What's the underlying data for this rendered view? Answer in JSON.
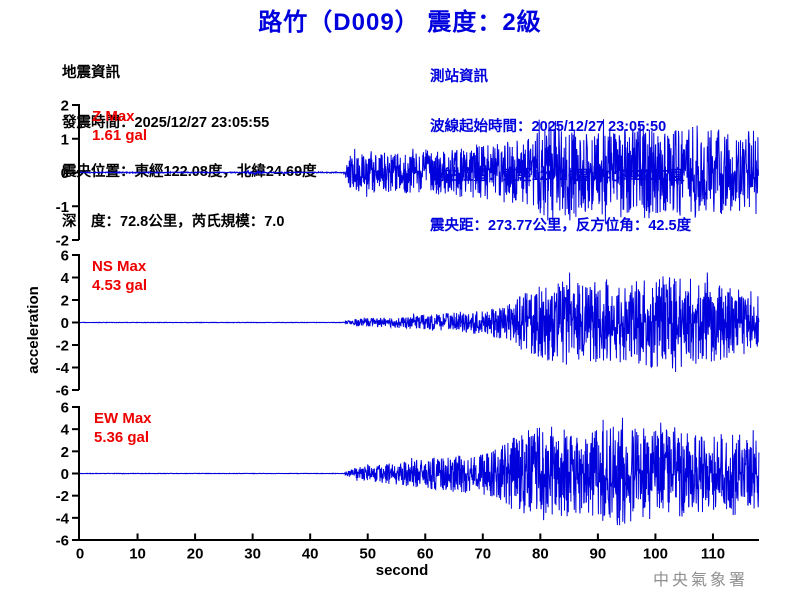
{
  "title": "路竹（D009） 震度：2級",
  "eq_info": {
    "lines": [
      "地震資訊",
      "發震時間：2025/12/27 23:05:55",
      "震央位置：東經122.08度，北緯24.69度",
      "深　度：72.8公里，芮氏規模：7.0"
    ]
  },
  "station_info": {
    "lines": [
      "測站資訊",
      "波線起始時間：2025/12/27 23:05:50",
      "測站位置：東經120.26度，北緯22.87度",
      "震央距：273.77公里，反方位角：42.5度"
    ]
  },
  "agency": "中央氣象署",
  "colors": {
    "trace_blue": "#0000dd",
    "accent_blue": "#0000dd",
    "label_red": "#ee0000",
    "axis_black": "#000000",
    "agency_gray": "#8f8f8f"
  },
  "chart_data": {
    "type": "line",
    "xlabel": "second",
    "ylabel": "acceleration",
    "x_range": [
      0,
      118
    ],
    "xticks": [
      0,
      10,
      20,
      30,
      40,
      50,
      60,
      70,
      80,
      90,
      100,
      110
    ],
    "grid": false,
    "series": [
      {
        "name": "Z",
        "max_label": "Z Max",
        "max_value": "1.61 gal",
        "max_gal": 1.61,
        "ylim": [
          -2,
          2
        ],
        "yticks": [
          2,
          1,
          0,
          -1,
          -2
        ],
        "onset_s": 46,
        "envelope": [
          [
            0,
            0.015
          ],
          [
            28.5,
            0.015
          ],
          [
            29,
            0.05
          ],
          [
            32,
            0.05
          ],
          [
            32.5,
            0.015
          ],
          [
            34.8,
            0.015
          ],
          [
            35,
            0.04
          ],
          [
            36,
            0.04
          ],
          [
            36.3,
            0.015
          ],
          [
            45.8,
            0.015
          ],
          [
            46.3,
            0.2
          ],
          [
            47,
            0.55
          ],
          [
            55,
            0.6
          ],
          [
            65,
            0.7
          ],
          [
            72,
            0.85
          ],
          [
            78,
            1.0
          ],
          [
            81,
            1.45
          ],
          [
            84,
            1.61
          ],
          [
            87,
            1.15
          ],
          [
            92,
            1.3
          ],
          [
            97,
            1.45
          ],
          [
            102,
            1.2
          ],
          [
            107,
            1.4
          ],
          [
            112,
            1.25
          ],
          [
            118,
            1.35
          ]
        ]
      },
      {
        "name": "NS",
        "max_label": "NS Max",
        "max_value": "4.53 gal",
        "max_gal": 4.53,
        "ylim": [
          -6,
          6
        ],
        "yticks": [
          6,
          4,
          2,
          0,
          -2,
          -4,
          -6
        ],
        "onset_s": 46,
        "envelope": [
          [
            0,
            0.02
          ],
          [
            45.8,
            0.02
          ],
          [
            46.3,
            0.15
          ],
          [
            48,
            0.35
          ],
          [
            54,
            0.45
          ],
          [
            60,
            0.7
          ],
          [
            66,
            0.9
          ],
          [
            70,
            1.1
          ],
          [
            74,
            1.6
          ],
          [
            77,
            2.6
          ],
          [
            80,
            3.3
          ],
          [
            84,
            3.8
          ],
          [
            88,
            3.4
          ],
          [
            92,
            3.9
          ],
          [
            96,
            3.6
          ],
          [
            100,
            4.1
          ],
          [
            104,
            4.53
          ],
          [
            108,
            3.6
          ],
          [
            112,
            3.3
          ],
          [
            115,
            2.9
          ],
          [
            118,
            2.7
          ]
        ]
      },
      {
        "name": "EW",
        "max_label": "EW Max",
        "max_value": "5.36 gal",
        "max_gal": 5.36,
        "ylim": [
          -6,
          6
        ],
        "yticks": [
          6,
          4,
          2,
          0,
          -2,
          -4,
          -6
        ],
        "onset_s": 46,
        "envelope": [
          [
            0,
            0.02
          ],
          [
            45.8,
            0.02
          ],
          [
            46.3,
            0.2
          ],
          [
            48,
            0.55
          ],
          [
            52,
            0.8
          ],
          [
            56,
            1.1
          ],
          [
            60,
            1.35
          ],
          [
            64,
            1.6
          ],
          [
            68,
            1.8
          ],
          [
            72,
            2.1
          ],
          [
            75,
            3.2
          ],
          [
            78,
            4.0
          ],
          [
            81,
            4.4
          ],
          [
            84,
            4.2
          ],
          [
            87,
            3.6
          ],
          [
            90,
            4.1
          ],
          [
            93,
            4.8
          ],
          [
            95,
            5.36
          ],
          [
            97,
            4.6
          ],
          [
            100,
            4.7
          ],
          [
            103,
            4.4
          ],
          [
            106,
            3.7
          ],
          [
            110,
            3.4
          ],
          [
            114,
            3.9
          ],
          [
            118,
            3.3
          ]
        ]
      }
    ]
  }
}
